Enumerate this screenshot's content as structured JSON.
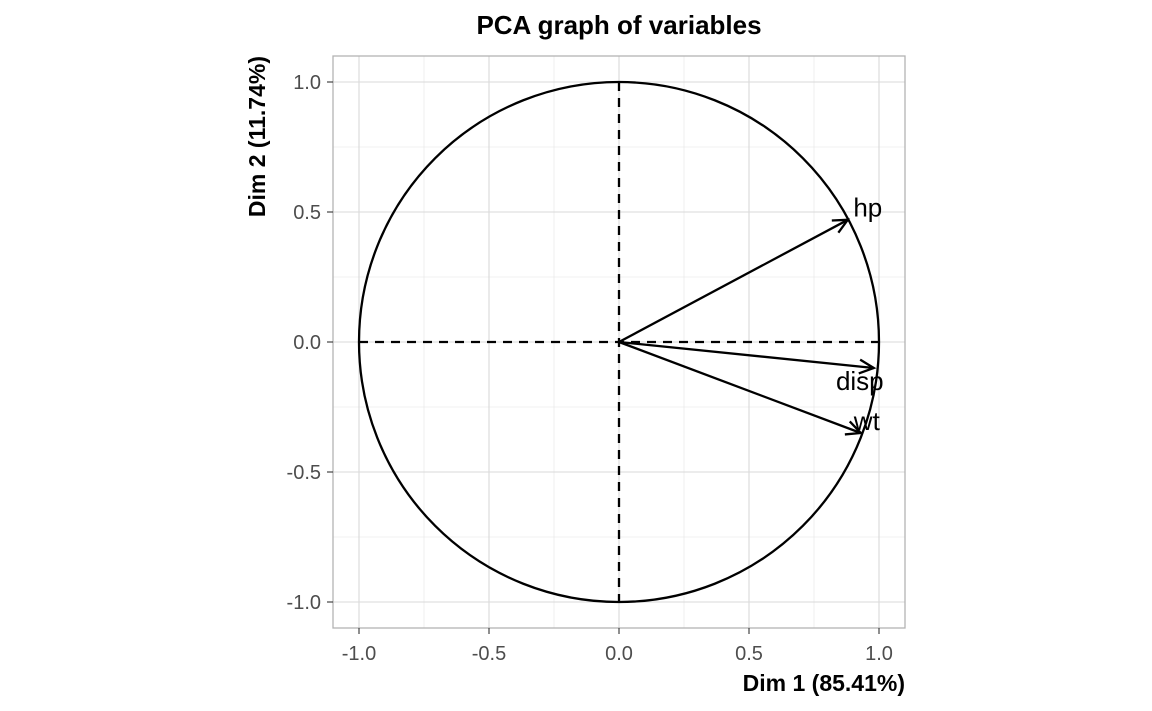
{
  "chart_data": {
    "type": "scatter",
    "title": "PCA graph of variables",
    "xlabel": "Dim 1 (85.41%)",
    "ylabel": "Dim 2 (11.74%)",
    "xlim": [
      -1.1,
      1.1
    ],
    "ylim": [
      -1.1,
      1.1
    ],
    "x_ticks": [
      -1.0,
      -0.5,
      0.0,
      0.5,
      1.0
    ],
    "y_ticks": [
      -1.0,
      -0.5,
      0.0,
      0.5,
      1.0
    ],
    "x_tick_labels": [
      "-1.0",
      "-0.5",
      "0.0",
      "0.5",
      "1.0"
    ],
    "y_tick_labels": [
      "-1.0",
      "-0.5",
      "0.0",
      "0.5",
      "1.0"
    ],
    "grid": true,
    "correlation_circle_radius": 1.0,
    "variables": [
      {
        "name": "hp",
        "x": 0.88,
        "y": 0.47
      },
      {
        "name": "disp",
        "x": 0.98,
        "y": -0.1
      },
      {
        "name": "wt",
        "x": 0.93,
        "y": -0.35
      }
    ],
    "colors": {
      "panel_border": "#b3b3b3",
      "grid_major": "#d9d9d9",
      "grid_minor": "#ebebeb",
      "ink": "#000000",
      "tick_text": "#4d4d4d"
    }
  }
}
